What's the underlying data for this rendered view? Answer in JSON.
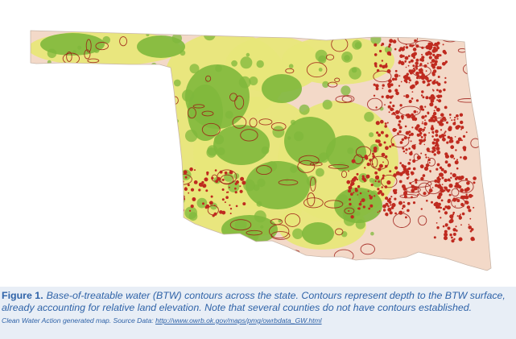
{
  "map": {
    "subject": "Oklahoma base-of-treatable water contours",
    "colors": {
      "no_contours": "#f3d9c8",
      "shallow_green": "#7fb83c",
      "mid_yellow": "#e8e77a",
      "deep_red": "#bf2a1f",
      "contour_line": "#9d1a14"
    }
  },
  "caption": {
    "figure_label": "Figure 1.",
    "line1": "Base-of-treatable water (BTW) contours across the state. Contours represent depth to the BTW surface,",
    "line2": "already accounting for relative land elevation. Note that several counties do not have contours established.",
    "source_prefix": "Clean Water Action generated map. Source Data: ",
    "source_url": "http://www.owrb.ok.gov/maps/pmg/owrbdata_GW.html"
  }
}
